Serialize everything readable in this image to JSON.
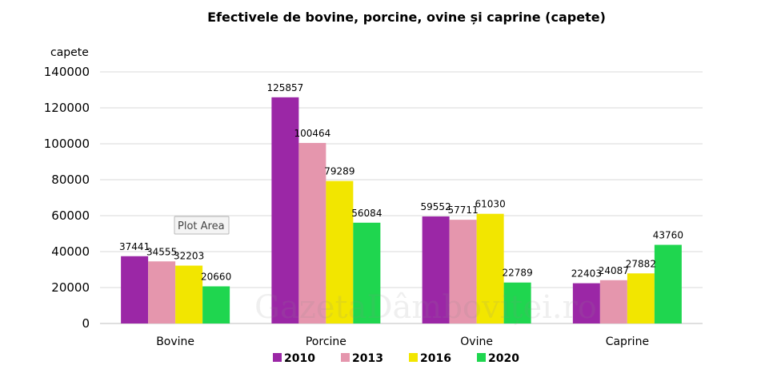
{
  "chart_data": {
    "type": "bar",
    "title": "Efectivele de bovine, porcine, ovine și caprine (capete)",
    "ylabel": "capete",
    "xlabel": "",
    "categories": [
      "Bovine",
      "Porcine",
      "Ovine",
      "Caprine"
    ],
    "series": [
      {
        "name": "2010",
        "color": "#9b27a6",
        "values": [
          37441,
          125857,
          59552,
          22403
        ]
      },
      {
        "name": "2013",
        "color": "#e596ad",
        "values": [
          34555,
          100464,
          57711,
          24087
        ]
      },
      {
        "name": "2016",
        "color": "#f2e600",
        "values": [
          32203,
          79289,
          61030,
          27882
        ]
      },
      {
        "name": "2020",
        "color": "#1fd64f",
        "values": [
          20660,
          56084,
          22789,
          43760
        ]
      }
    ],
    "ylim": [
      0,
      140000
    ],
    "yticks": [
      0,
      20000,
      40000,
      60000,
      80000,
      100000,
      120000,
      140000
    ],
    "grid": true,
    "legend_position": "bottom"
  },
  "tooltip": {
    "label": "Plot Area"
  },
  "watermark": {
    "text": "GazetaDâmboviței.ro"
  }
}
